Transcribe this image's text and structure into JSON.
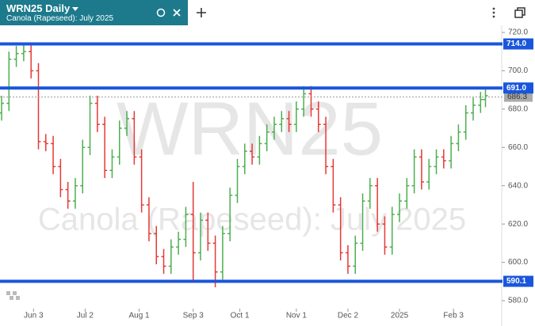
{
  "chart_data": {
    "type": "ohlc",
    "title": "WRN25 Daily",
    "subtitle": "Canola (Rapeseed): July 2025",
    "watermark": "WRN25",
    "x": [
      0,
      3,
      6,
      9,
      12,
      15,
      18,
      21,
      24,
      27,
      30,
      33,
      36,
      39,
      42,
      45,
      48,
      51,
      54,
      57,
      60,
      63,
      66,
      69,
      72,
      75,
      78,
      81,
      84,
      87,
      90,
      93,
      96,
      99,
      102,
      105,
      108,
      111,
      114,
      117,
      120,
      123,
      126,
      129,
      132,
      135,
      138,
      141,
      144,
      147,
      150,
      153,
      156,
      159,
      162,
      165,
      168,
      171,
      174,
      177,
      180,
      183,
      186,
      189,
      192,
      195,
      197
    ],
    "open": [
      678,
      683,
      706,
      709,
      710,
      700,
      663,
      662,
      650,
      638,
      632,
      640,
      660,
      683,
      672,
      648,
      655,
      670,
      675,
      655,
      630,
      615,
      603,
      598,
      608,
      612,
      625,
      605,
      622,
      610,
      595,
      615,
      635,
      650,
      658,
      655,
      662,
      668,
      672,
      675,
      672,
      680,
      688,
      680,
      672,
      650,
      630,
      605,
      598,
      610,
      632,
      640,
      620,
      608,
      625,
      632,
      640,
      655,
      642,
      650,
      655,
      653,
      662,
      668,
      678,
      682,
      685
    ],
    "high": [
      687,
      710,
      713,
      714,
      714,
      704,
      667,
      666,
      654,
      642,
      644,
      664,
      687,
      687,
      676,
      659,
      674,
      679,
      679,
      659,
      634,
      619,
      607,
      612,
      616,
      629,
      642,
      626,
      626,
      614,
      619,
      639,
      654,
      662,
      662,
      666,
      672,
      676,
      679,
      679,
      684,
      692,
      692,
      684,
      676,
      654,
      634,
      609,
      614,
      636,
      644,
      644,
      624,
      629,
      636,
      644,
      659,
      659,
      654,
      659,
      659,
      666,
      672,
      682,
      686,
      689,
      691
    ],
    "low": [
      674,
      679,
      702,
      705,
      696,
      659,
      658,
      646,
      634,
      628,
      628,
      636,
      656,
      668,
      644,
      644,
      651,
      666,
      651,
      626,
      611,
      599,
      594,
      594,
      604,
      608,
      590,
      601,
      606,
      587,
      591,
      611,
      631,
      646,
      651,
      651,
      658,
      664,
      668,
      668,
      668,
      676,
      676,
      668,
      646,
      626,
      601,
      594,
      594,
      606,
      628,
      616,
      604,
      604,
      621,
      628,
      636,
      638,
      638,
      646,
      649,
      649,
      658,
      664,
      674,
      678,
      681
    ],
    "close": [
      683,
      706,
      709,
      710,
      700,
      663,
      662,
      650,
      638,
      632,
      640,
      660,
      683,
      672,
      648,
      655,
      670,
      675,
      655,
      630,
      615,
      603,
      598,
      608,
      612,
      625,
      605,
      622,
      610,
      595,
      615,
      635,
      650,
      658,
      655,
      662,
      668,
      672,
      675,
      672,
      680,
      688,
      680,
      672,
      650,
      630,
      605,
      598,
      610,
      632,
      640,
      620,
      608,
      625,
      632,
      640,
      655,
      642,
      650,
      655,
      653,
      662,
      668,
      678,
      682,
      685,
      687
    ],
    "up_color": "#4caf50",
    "down_color": "#e53935",
    "xlim": [
      0,
      202
    ],
    "xticks": [
      {
        "value": 13,
        "label": "Jun 3"
      },
      {
        "value": 34,
        "label": "Jul 2"
      },
      {
        "value": 56,
        "label": "Aug 1"
      },
      {
        "value": 78,
        "label": "Sep 3"
      },
      {
        "value": 97,
        "label": "Oct 1"
      },
      {
        "value": 120,
        "label": "Nov 1"
      },
      {
        "value": 141,
        "label": "Dec 2"
      },
      {
        "value": 162,
        "label": "2025"
      },
      {
        "value": 184,
        "label": "Feb 3"
      }
    ],
    "ylim": [
      580,
      720
    ],
    "yticks": [
      {
        "value": 580,
        "label": "580.0"
      },
      {
        "value": 600,
        "label": "600.0"
      },
      {
        "value": 620,
        "label": "620.0"
      },
      {
        "value": 640,
        "label": "640.0"
      },
      {
        "value": 660,
        "label": "660.0"
      },
      {
        "value": 680,
        "label": "680.0"
      },
      {
        "value": 700,
        "label": "700.0"
      },
      {
        "value": 720,
        "label": "720.0"
      }
    ],
    "levels": [
      {
        "value": 714,
        "label": "714.0"
      },
      {
        "value": 691,
        "label": "691.0"
      },
      {
        "value": 590.1,
        "label": "590.1"
      }
    ],
    "level_color": "#1a56db",
    "last_price": {
      "value": 686.3,
      "label": "686.3"
    },
    "grid": false
  }
}
